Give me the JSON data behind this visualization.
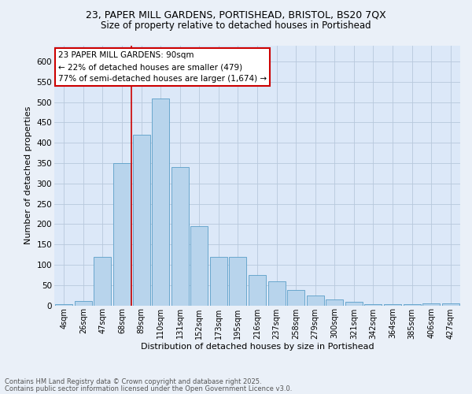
{
  "title_line1": "23, PAPER MILL GARDENS, PORTISHEAD, BRISTOL, BS20 7QX",
  "title_line2": "Size of property relative to detached houses in Portishead",
  "xlabel": "Distribution of detached houses by size in Portishead",
  "ylabel": "Number of detached properties",
  "annotation_title": "23 PAPER MILL GARDENS: 90sqm",
  "annotation_line2": "← 22% of detached houses are smaller (479)",
  "annotation_line3": "77% of semi-detached houses are larger (1,674) →",
  "footer_line1": "Contains HM Land Registry data © Crown copyright and database right 2025.",
  "footer_line2": "Contains public sector information licensed under the Open Government Licence v3.0.",
  "bar_labels": [
    "4sqm",
    "26sqm",
    "47sqm",
    "68sqm",
    "89sqm",
    "110sqm",
    "131sqm",
    "152sqm",
    "173sqm",
    "195sqm",
    "216sqm",
    "237sqm",
    "258sqm",
    "279sqm",
    "300sqm",
    "321sqm",
    "342sqm",
    "364sqm",
    "385sqm",
    "406sqm",
    "427sqm"
  ],
  "bar_values": [
    2,
    10,
    120,
    350,
    420,
    510,
    340,
    195,
    120,
    120,
    75,
    60,
    38,
    25,
    15,
    8,
    3,
    2,
    3,
    5,
    5
  ],
  "bar_color": "#b8d4ec",
  "bar_edge_color": "#5a9ec8",
  "vline_x_idx": 4,
  "vline_color": "#cc0000",
  "annotation_box_edgecolor": "#cc0000",
  "plot_bg_color": "#dce8f8",
  "fig_bg_color": "#eaf0f8",
  "grid_color": "#b8c8dc",
  "ylim": [
    0,
    640
  ],
  "yticks": [
    0,
    50,
    100,
    150,
    200,
    250,
    300,
    350,
    400,
    450,
    500,
    550,
    600
  ]
}
